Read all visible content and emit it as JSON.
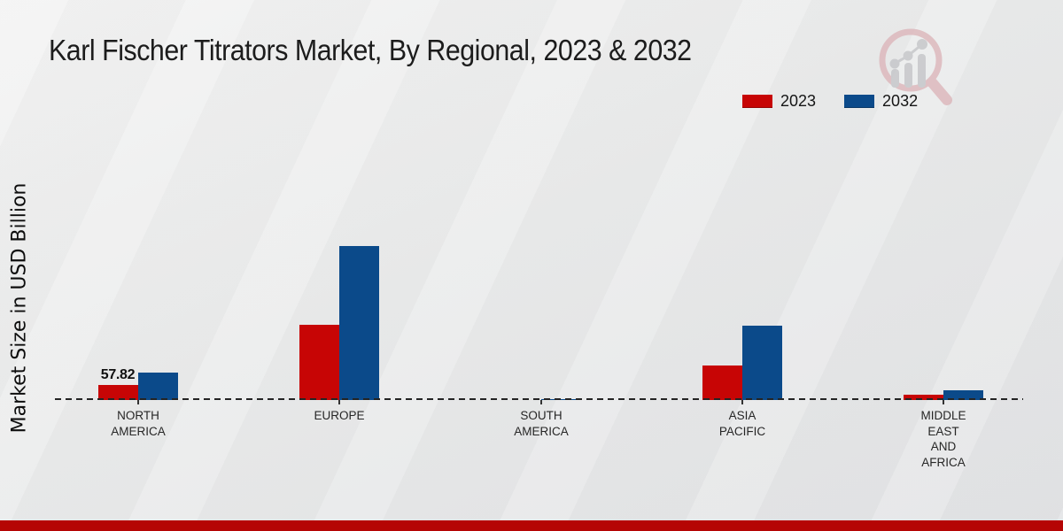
{
  "page": {
    "title": "Karl Fischer Titrators Market, By Regional, 2023 & 2032",
    "ylabel": "Market Size in USD Billion"
  },
  "legend": {
    "items": [
      {
        "label": "2023",
        "color": "#c70505"
      },
      {
        "label": "2032",
        "color": "#0b4a8a"
      }
    ]
  },
  "chart_data": {
    "type": "bar",
    "title": "Karl Fischer Titrators Market, By Regional, 2023 & 2032",
    "ylabel": "Market Size in USD Billion",
    "unit": "USD Billion",
    "categories": [
      "NORTH AMERICA",
      "EUROPE",
      "SOUTH AMERICA",
      "ASIA PACIFIC",
      "MIDDLE EAST AND AFRICA"
    ],
    "category_label_lines": [
      [
        "NORTH",
        "AMERICA"
      ],
      [
        "EUROPE"
      ],
      [
        "SOUTH",
        "AMERICA"
      ],
      [
        "ASIA",
        "PACIFIC"
      ],
      [
        "MIDDLE",
        "EAST",
        "AND",
        "AFRICA"
      ]
    ],
    "series": [
      {
        "name": "2023",
        "color": "#c70505",
        "values": [
          57.82,
          289.1,
          1.2,
          132.6,
          20.4
        ]
      },
      {
        "name": "2032",
        "color": "#0b4a8a",
        "values": [
          105.4,
          591.8,
          3.5,
          285.7,
          37.4
        ]
      }
    ],
    "bar_value_labels": [
      {
        "series": "2023",
        "category": "NORTH AMERICA",
        "text": "57.82"
      }
    ],
    "ylim": [
      0,
      650
    ],
    "grid": false,
    "baseline_style": "dashed",
    "legend_position": "top-right"
  },
  "branding": {
    "logo_name": "magnifier-bar-chart-logo",
    "logo_ring_color": "#dcb6ba",
    "logo_bar_color": "#c4c5c8"
  },
  "footer": {
    "band_color": "#b50504"
  }
}
